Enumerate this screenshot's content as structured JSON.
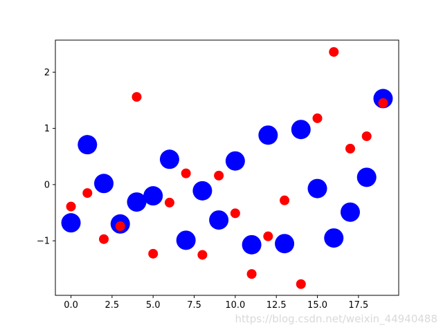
{
  "chart_data": {
    "type": "scatter",
    "xlim": [
      -0.95,
      19.95
    ],
    "ylim": [
      -1.97,
      2.57
    ],
    "xticks": [
      0.0,
      2.5,
      5.0,
      7.5,
      10.0,
      12.5,
      15.0,
      17.5
    ],
    "xtick_labels": [
      "0.0",
      "2.5",
      "5.0",
      "7.5",
      "10.0",
      "12.5",
      "15.0",
      "17.5"
    ],
    "yticks": [
      -1,
      0,
      1,
      2
    ],
    "ytick_labels": [
      "−1",
      "0",
      "1",
      "2"
    ],
    "grid": false,
    "series": [
      {
        "color": "#0000ff",
        "marker_size": "large",
        "points": [
          [
            0,
            -0.68
          ],
          [
            1,
            0.71
          ],
          [
            2,
            0.02
          ],
          [
            3,
            -0.7
          ],
          [
            4,
            -0.31
          ],
          [
            5,
            -0.2
          ],
          [
            6,
            0.45
          ],
          [
            7,
            -0.99
          ],
          [
            8,
            -0.11
          ],
          [
            9,
            -0.63
          ],
          [
            10,
            0.42
          ],
          [
            11,
            -1.07
          ],
          [
            12,
            0.88
          ],
          [
            13,
            -1.05
          ],
          [
            14,
            0.98
          ],
          [
            15,
            -0.07
          ],
          [
            16,
            -0.95
          ],
          [
            17,
            -0.49
          ],
          [
            18,
            0.13
          ],
          [
            19,
            1.53
          ]
        ]
      },
      {
        "color": "#ff0000",
        "marker_size": "small",
        "points": [
          [
            0,
            -0.39
          ],
          [
            1,
            -0.15
          ],
          [
            2,
            -0.97
          ],
          [
            3,
            -0.74
          ],
          [
            4,
            1.56
          ],
          [
            5,
            -1.23
          ],
          [
            6,
            -0.32
          ],
          [
            7,
            0.2
          ],
          [
            8,
            -1.25
          ],
          [
            9,
            0.16
          ],
          [
            10,
            -0.51
          ],
          [
            11,
            -1.59
          ],
          [
            12,
            -0.92
          ],
          [
            13,
            -0.28
          ],
          [
            14,
            -1.77
          ],
          [
            15,
            1.18
          ],
          [
            16,
            2.36
          ],
          [
            17,
            0.64
          ],
          [
            18,
            0.86
          ],
          [
            19,
            1.45
          ]
        ]
      }
    ]
  },
  "watermark": "https://blog.csdn.net/weixin_44940488"
}
